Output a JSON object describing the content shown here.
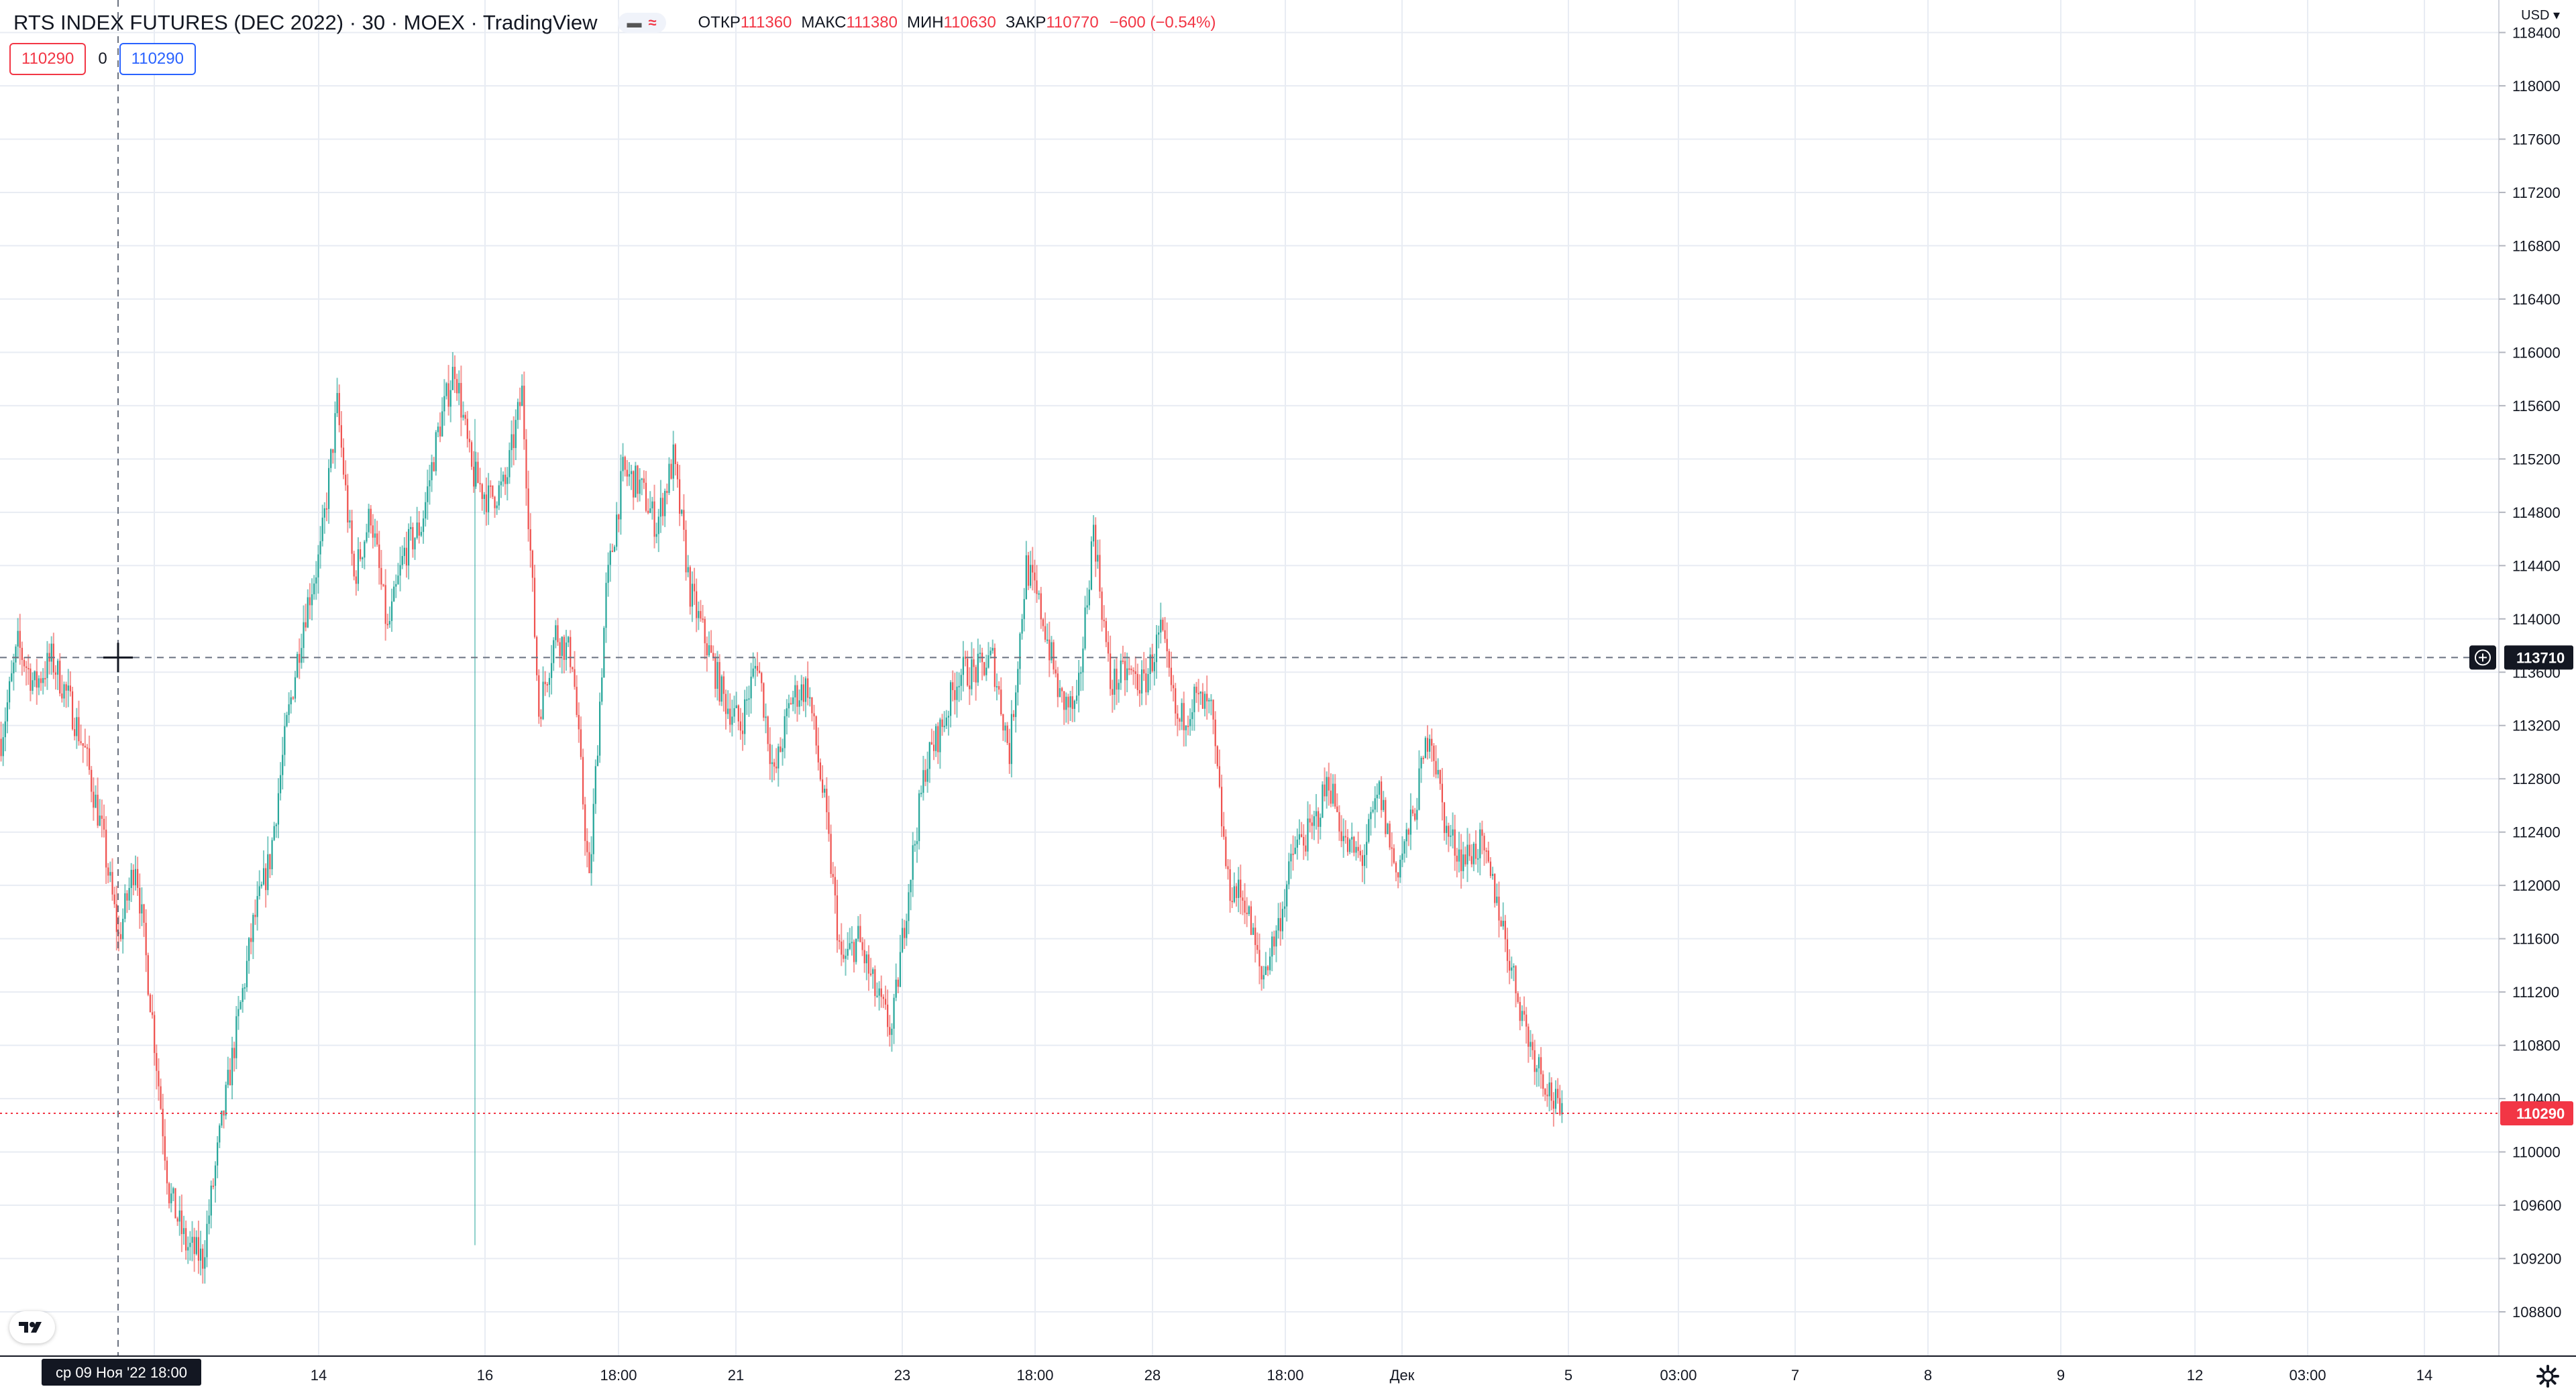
{
  "legend": {
    "title": "RTS INDEX FUTURES (DEC 2022) · 30 · MOEX · TradingView",
    "open_label": "ОТКР",
    "open": "111360",
    "high_label": "МАКС",
    "high": "111380",
    "low_label": "МИН",
    "low": "110630",
    "close_label": "ЗАКР",
    "close": "110770",
    "change": "−600 (−0.54%)"
  },
  "trade": {
    "sell_price": "110290",
    "spread": "0",
    "buy_price": "110290"
  },
  "currency": "USD",
  "currency_arrow": "▾",
  "colors": {
    "up": "#26a69a",
    "down": "#ef5350",
    "grid": "#e8ecf3",
    "crosshair": "#6b7280",
    "price_line": "#f23645",
    "label_dark": "#131722"
  },
  "crosshair": {
    "price_label": "113710",
    "time_label": "ср 09 Ноя '22   18:00"
  },
  "last_price_label": "110290",
  "icons": {
    "logo": "tradingview-logo-icon",
    "settings": "gear-icon",
    "add_alert": "plus-circle-icon",
    "crosshair_cursor": "crosshair-cursor-icon"
  },
  "chart_data": {
    "type": "candlestick",
    "symbol": "RTS INDEX FUTURES (DEC 2022)",
    "interval": "30",
    "exchange": "MOEX",
    "ylim": [
      108600,
      118500
    ],
    "y_ticks": [
      108800,
      109200,
      109600,
      110000,
      110400,
      110800,
      111200,
      111600,
      112000,
      112400,
      112800,
      113200,
      113600,
      114000,
      114400,
      114800,
      115200,
      115600,
      116000,
      116400,
      116800,
      117200,
      117600,
      118000,
      118400
    ],
    "x_ticks": [
      "14",
      "16",
      "18:00",
      "21",
      "23",
      "18:00",
      "28",
      "18:00",
      "Дек",
      "5",
      "03:00",
      "7",
      "8",
      "9",
      "12",
      "03:00",
      "14"
    ],
    "grid": true,
    "close_path": [
      113100,
      113800,
      113500,
      113700,
      113400,
      113000,
      112400,
      111600,
      112200,
      111000,
      109700,
      109300,
      109200,
      110100,
      110900,
      111700,
      112200,
      113200,
      114000,
      114500,
      115600,
      114300,
      114800,
      113900,
      114500,
      114700,
      115400,
      115900,
      115100,
      114900,
      115000,
      115700,
      113300,
      113900,
      113700,
      112000,
      114200,
      115100,
      115000,
      114700,
      115200,
      114200,
      113800,
      113400,
      113200,
      113700,
      112800,
      113400,
      113500,
      112600,
      111400,
      111600,
      111200,
      110900,
      112000,
      112900,
      113200,
      113600,
      113600,
      113700,
      113000,
      114400,
      114000,
      113400,
      113300,
      114700,
      113500,
      113600,
      113500,
      113900,
      113200,
      113400,
      113300,
      112000,
      111900,
      111300,
      111700,
      112300,
      112400,
      112800,
      112300,
      112200,
      112700,
      112100,
      112500,
      113200,
      112400,
      112200,
      112300,
      111900,
      111300,
      110800,
      110500,
      110200
    ]
  }
}
